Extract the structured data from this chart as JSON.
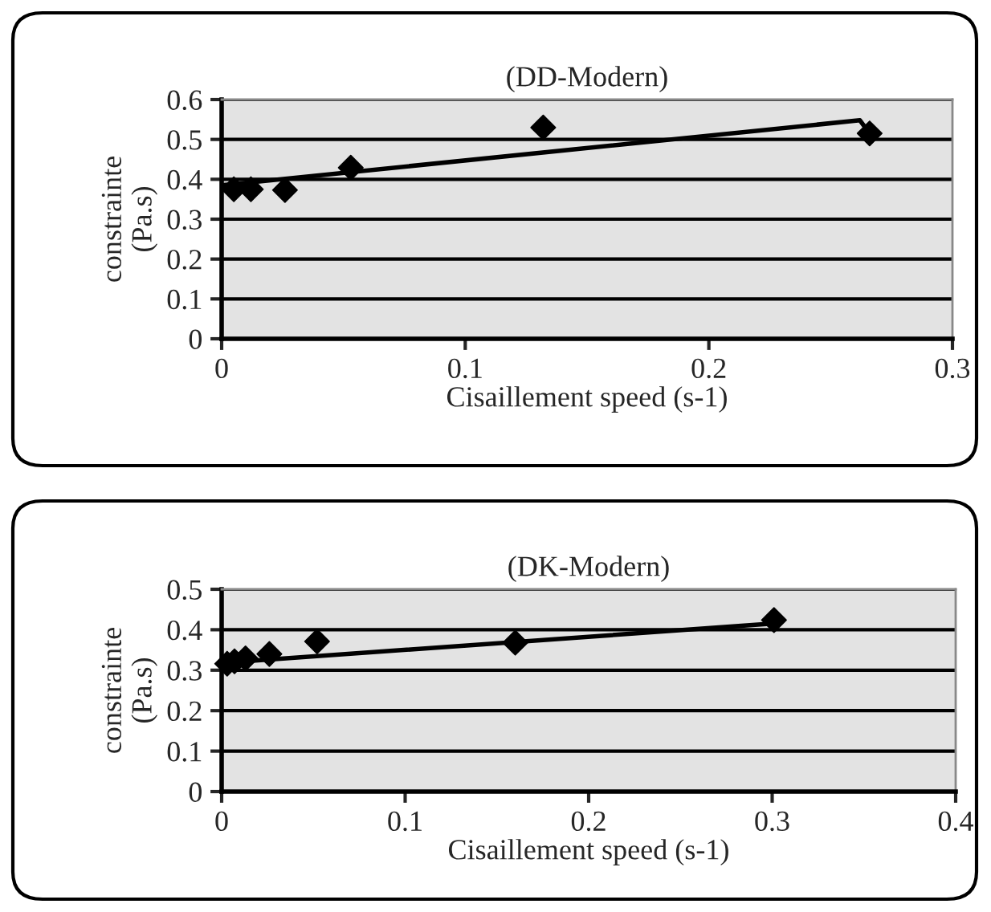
{
  "chart_data": [
    {
      "type": "scatter",
      "title": "(DD-Modern)",
      "xlabel": "Cisaillement speed (s-1)",
      "ylabel": "constrainte\n(Pa.s)",
      "xlim": [
        0,
        0.3
      ],
      "xticks": [
        0,
        0.1,
        0.2,
        0.3
      ],
      "ylim": [
        0,
        0.6
      ],
      "yticks": [
        0,
        0.1,
        0.2,
        0.3,
        0.4,
        0.5,
        0.6
      ],
      "grid": "y",
      "legend": false,
      "series": [
        {
          "color": "#000000",
          "marker": "diamond",
          "x": [
            0.005,
            0.012,
            0.026,
            0.053,
            0.132,
            0.266
          ],
          "values": [
            0.375,
            0.375,
            0.373,
            0.429,
            0.53,
            0.515
          ]
        },
        {
          "type": "line",
          "color": "#000000",
          "marker": "none",
          "x": [
            0,
            0.262,
            0.266
          ],
          "values": [
            0.385,
            0.548,
            0.515
          ]
        }
      ]
    },
    {
      "type": "scatter",
      "title": "(DK-Modern)",
      "xlabel": "Cisaillement speed (s-1)",
      "ylabel": "constrainte\n(Pa.s)",
      "xlim": [
        0,
        0.4
      ],
      "xticks": [
        0,
        0.1,
        0.2,
        0.3,
        0.4
      ],
      "ylim": [
        0,
        0.5
      ],
      "yticks": [
        0,
        0.1,
        0.2,
        0.3,
        0.4,
        0.5
      ],
      "grid": "y",
      "legend": false,
      "series": [
        {
          "color": "#000000",
          "marker": "diamond",
          "x": [
            0.003,
            0.007,
            0.013,
            0.026,
            0.052,
            0.16,
            0.301
          ],
          "values": [
            0.316,
            0.322,
            0.329,
            0.34,
            0.371,
            0.368,
            0.424
          ]
        },
        {
          "type": "line",
          "color": "#000000",
          "marker": "none",
          "x": [
            0,
            0.3
          ],
          "values": [
            0.318,
            0.415
          ]
        }
      ]
    }
  ]
}
